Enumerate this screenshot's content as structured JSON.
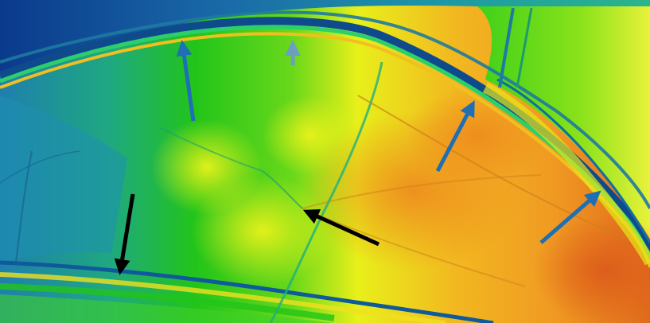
{
  "image": {
    "description_colors": {
      "low": "#0a3a8c",
      "mid_low": "#1f8fb0",
      "mid": "#22c41a",
      "mid_high": "#e8f01a",
      "high": "#f0a020",
      "very_high": "#e06a1c"
    },
    "arrows": [
      {
        "kind": "blue-arrow",
        "color": "#1f6fb5"
      },
      {
        "kind": "faded-blue-arrow",
        "color": "#6a9fc0"
      },
      {
        "kind": "blue-arrow",
        "color": "#1f6fb5"
      },
      {
        "kind": "blue-arrow",
        "color": "#1f6fb5"
      },
      {
        "kind": "black-arrow",
        "color": "#000000"
      },
      {
        "kind": "black-arrow",
        "color": "#000000"
      }
    ]
  }
}
